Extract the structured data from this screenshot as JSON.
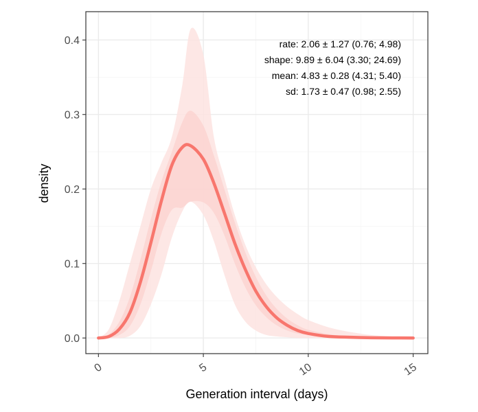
{
  "chart_data": {
    "type": "line",
    "xlabel": "Generation interval (days)",
    "ylabel": "density",
    "xlim": [
      -0.6,
      15.7
    ],
    "ylim": [
      -0.021,
      0.438
    ],
    "x_ticks": [
      "0",
      "5",
      "10",
      "15"
    ],
    "x_tick_values": [
      0,
      5,
      10,
      15
    ],
    "y_ticks": [
      "0.0",
      "0.1",
      "0.2",
      "0.3",
      "0.4"
    ],
    "y_tick_values": [
      0,
      0.1,
      0.2,
      0.3,
      0.4
    ],
    "grid": true,
    "colors": {
      "line": "#F8766D",
      "band_outer": "#FDE3E1",
      "band_inner": "#FBCBC6",
      "grid_major": "#EBEBEB",
      "grid_minor": "#F5F5F5",
      "frame": "#333333"
    },
    "annotations": [
      "rate: 2.06 ± 1.27 (0.76; 4.98)",
      "shape: 9.89 ± 6.04 (3.30; 24.69)",
      "mean: 4.83 ± 0.28 (4.31; 5.40)",
      "sd: 1.73 ± 0.47 (0.98; 2.55)"
    ],
    "series": [
      {
        "role": "median",
        "x": [
          0,
          0.5,
          1,
          1.5,
          2,
          2.5,
          3,
          3.5,
          4,
          4.4,
          5,
          5.5,
          6,
          6.5,
          7,
          7.5,
          8,
          8.5,
          9,
          9.5,
          10,
          11,
          12,
          13,
          14,
          15
        ],
        "y": [
          0,
          0.002,
          0.012,
          0.034,
          0.075,
          0.128,
          0.184,
          0.232,
          0.256,
          0.258,
          0.24,
          0.208,
          0.168,
          0.127,
          0.092,
          0.063,
          0.042,
          0.027,
          0.017,
          0.01,
          0.006,
          0.002,
          0.001,
          0.0003,
          0.0001,
          0
        ]
      }
    ],
    "bands": [
      {
        "role": "outer",
        "x": [
          0,
          0.5,
          1,
          1.5,
          2,
          2.5,
          3,
          3.5,
          4,
          4.4,
          5,
          5.5,
          6,
          6.5,
          7,
          7.5,
          8,
          8.5,
          9,
          9.5,
          10,
          11,
          12,
          13,
          14,
          15
        ],
        "lower": [
          0,
          0,
          0,
          0.003,
          0.016,
          0.045,
          0.085,
          0.135,
          0.17,
          0.183,
          0.165,
          0.13,
          0.085,
          0.045,
          0.022,
          0.01,
          0.004,
          0.002,
          0.001,
          0,
          0,
          0,
          0,
          0,
          0,
          0
        ],
        "upper": [
          0,
          0.012,
          0.05,
          0.1,
          0.15,
          0.2,
          0.235,
          0.27,
          0.34,
          0.415,
          0.38,
          0.27,
          0.215,
          0.165,
          0.125,
          0.095,
          0.072,
          0.055,
          0.042,
          0.032,
          0.024,
          0.014,
          0.008,
          0.004,
          0.002,
          0.001
        ]
      },
      {
        "role": "inner",
        "x": [
          0,
          0.5,
          1,
          1.5,
          2,
          2.5,
          3,
          3.5,
          4,
          4.4,
          5,
          5.5,
          6,
          6.5,
          7,
          7.5,
          8,
          8.5,
          9,
          9.5,
          10,
          11,
          12,
          13,
          14,
          15
        ],
        "lower": [
          0,
          0,
          0.004,
          0.016,
          0.045,
          0.09,
          0.14,
          0.172,
          0.175,
          0.183,
          0.182,
          0.168,
          0.138,
          0.1,
          0.068,
          0.044,
          0.028,
          0.017,
          0.01,
          0.006,
          0.004,
          0.001,
          0,
          0,
          0,
          0
        ],
        "upper": [
          0,
          0.005,
          0.022,
          0.055,
          0.105,
          0.16,
          0.21,
          0.25,
          0.29,
          0.305,
          0.285,
          0.245,
          0.2,
          0.155,
          0.115,
          0.082,
          0.057,
          0.039,
          0.026,
          0.017,
          0.011,
          0.005,
          0.002,
          0.001,
          0,
          0
        ]
      }
    ]
  }
}
